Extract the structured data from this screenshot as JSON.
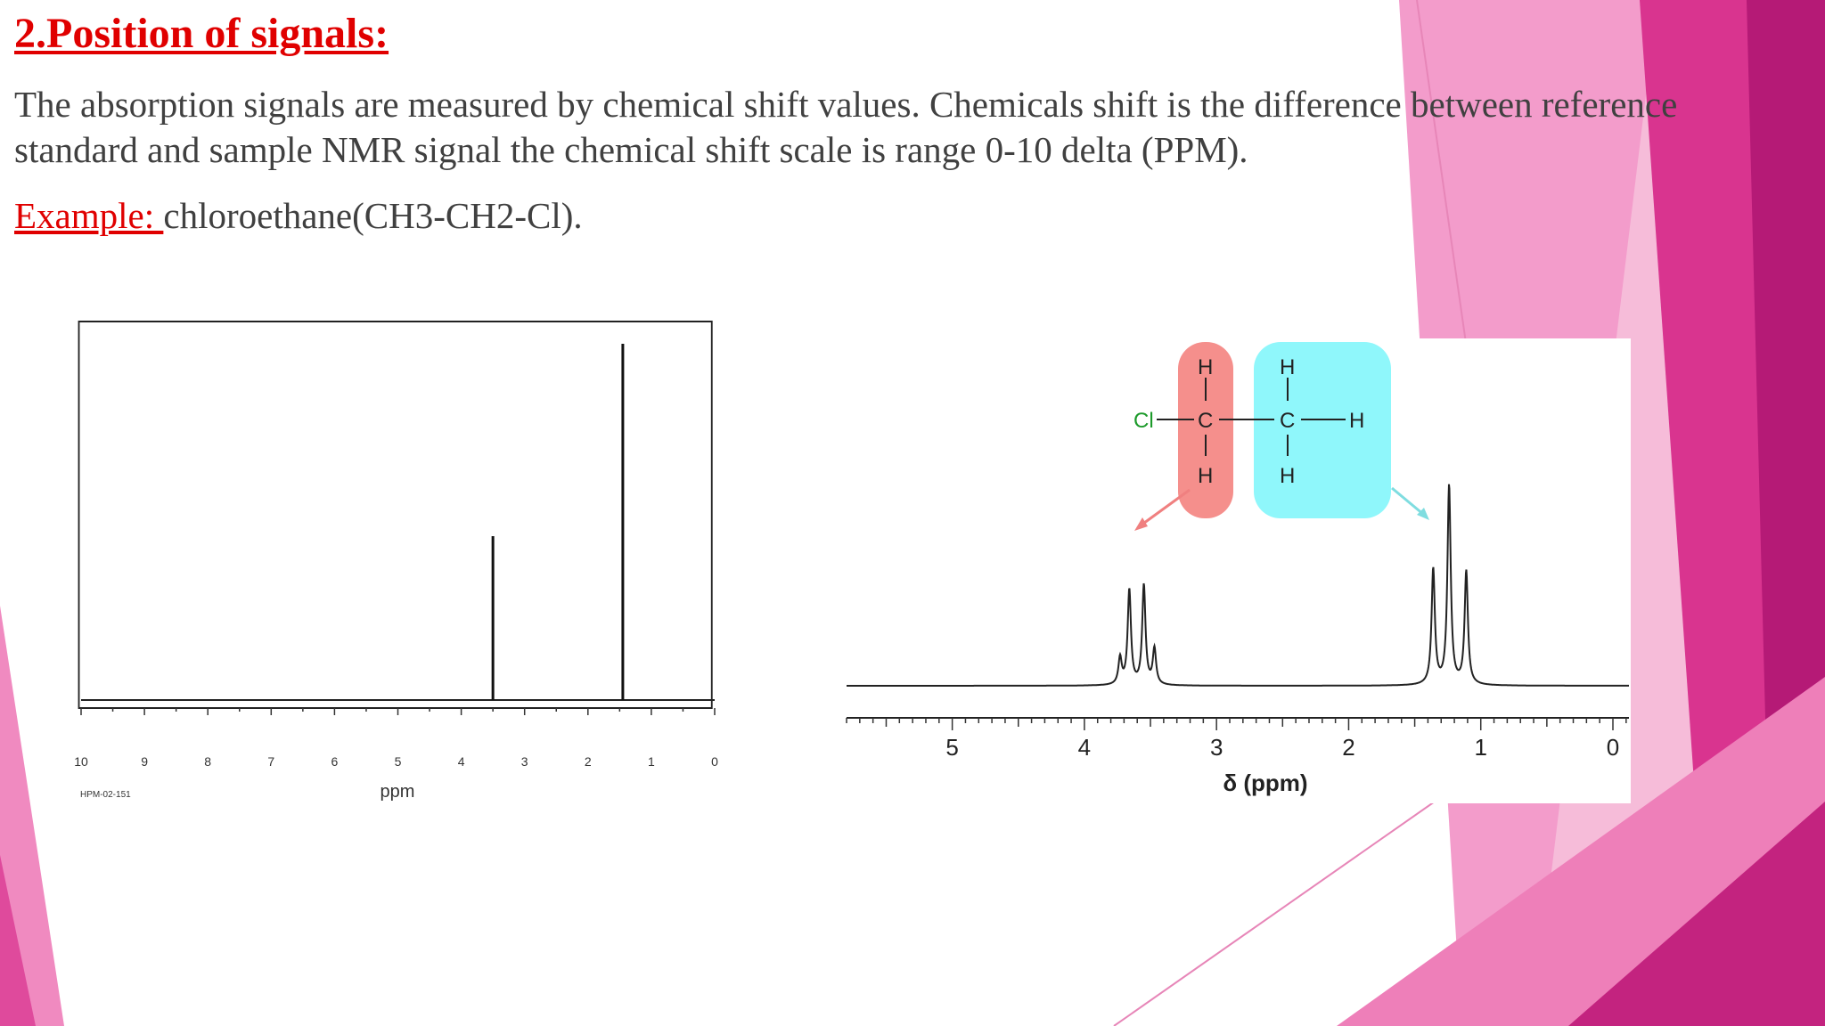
{
  "slide": {
    "title": "2.Position of signals:",
    "paragraph": "The absorption signals are measured by chemical shift values. Chemicals shift is the difference between reference standard and sample NMR signal the chemical shift scale is range 0-10 delta (PPM).",
    "example_label": "Example: ",
    "example_text": "chloroethane(CH3-CH2-Cl)."
  },
  "colors": {
    "title": "#e00000",
    "text": "#404040",
    "pink_light": "#f6b6d6",
    "pink_mid": "#f08ac0",
    "magenta": "#d62b8c",
    "magenta_dark": "#b01673",
    "ch2_highlight": "#f58f8c",
    "ch3_highlight": "#8ff7fb"
  },
  "left_spectrum": {
    "ticks": [
      "10",
      "9",
      "8",
      "7",
      "6",
      "5",
      "4",
      "3",
      "2",
      "1",
      "0"
    ],
    "axis_label": "ppm",
    "code": "HPM-02-151"
  },
  "right_spectrum": {
    "ticks": [
      "5",
      "4",
      "3",
      "2",
      "1",
      "0"
    ],
    "axis_label": "δ (ppm)",
    "molecule": {
      "cl": "Cl",
      "c1": "C",
      "c2": "C",
      "h": "H"
    }
  },
  "chart_data": [
    {
      "type": "line",
      "xlabel": "ppm",
      "xlim": [
        10,
        0
      ],
      "peaks": [
        {
          "shift": 3.5,
          "relative_height": 0.46
        },
        {
          "shift": 1.45,
          "relative_height": 1.0
        }
      ]
    },
    {
      "type": "line",
      "xlabel": "δ (ppm)",
      "xlim": [
        5.8,
        0
      ],
      "peaks": [
        {
          "group": "CH2",
          "multiplicity": "quartet",
          "shifts": [
            3.73,
            3.66,
            3.55,
            3.47
          ],
          "heights": [
            0.23,
            0.82,
            0.86,
            0.31
          ]
        },
        {
          "group": "CH3",
          "multiplicity": "triplet",
          "shifts": [
            1.36,
            1.24,
            1.11
          ],
          "heights": [
            1.0,
            1.72,
            0.98
          ]
        }
      ]
    }
  ]
}
